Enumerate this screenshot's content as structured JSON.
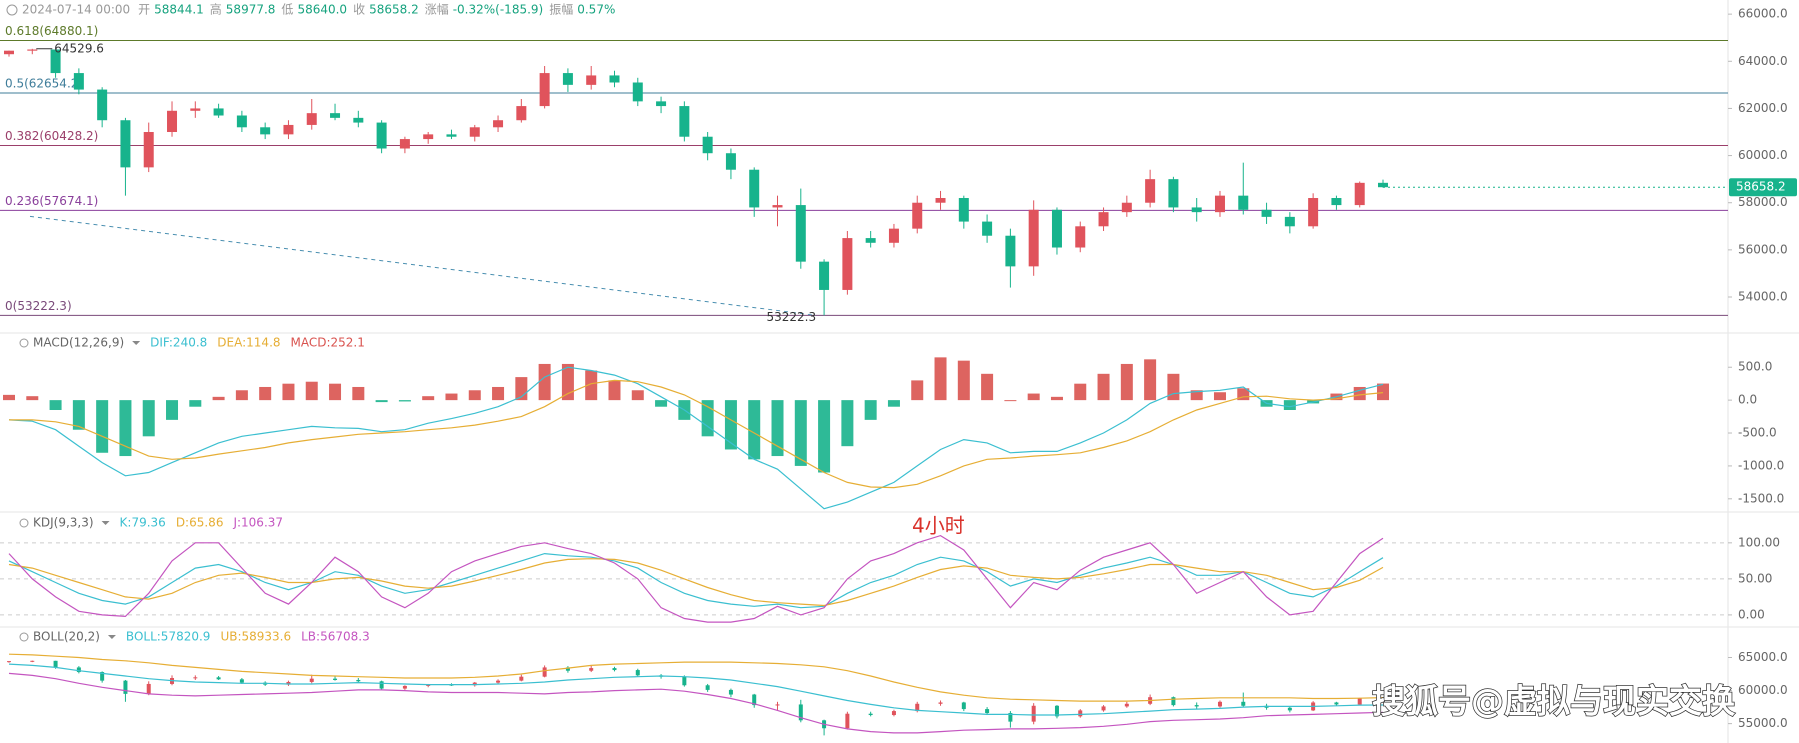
{
  "chart_data": [
    {
      "type": "candlestick",
      "header": {
        "date": "2024-07-14 00:00",
        "items": [
          {
            "label": "开",
            "value": "58844.1"
          },
          {
            "label": "高",
            "value": "58977.8"
          },
          {
            "label": "低",
            "value": "58640.0"
          },
          {
            "label": "收",
            "value": "58658.2"
          },
          {
            "label": "涨幅",
            "value": "-0.32%(-185.9)"
          },
          {
            "label": "振幅",
            "value": "0.57%"
          }
        ]
      },
      "ylim": [
        52940,
        66600
      ],
      "yticks": [
        {
          "value": 66000,
          "label": "66000.0"
        },
        {
          "value": 64000,
          "label": "64000.0"
        },
        {
          "value": 62000,
          "label": "62000.0"
        },
        {
          "value": 60000,
          "label": "60000.0"
        },
        {
          "value": 58000,
          "label": "58000.0"
        },
        {
          "value": 56000,
          "label": "56000.0"
        },
        {
          "value": 54000,
          "label": "54000.0"
        }
      ],
      "fib_levels": [
        {
          "value": 64880.1,
          "label": "0.618(64880.1)",
          "color": "#5d7a2a"
        },
        {
          "value": 62654.2,
          "label": "0.5(62654.2)",
          "color": "#3f7d9a"
        },
        {
          "value": 60428.2,
          "label": "0.382(60428.2)",
          "color": "#9b3f6a"
        },
        {
          "value": 57674.1,
          "label": "0.236(57674.1)",
          "color": "#8a3f9b"
        },
        {
          "value": 53222.3,
          "label": "0(53222.3)",
          "color": "#7a4a7a"
        }
      ],
      "annotations": [
        {
          "value": 64529.6,
          "label": "64529.6"
        },
        {
          "value": 53222.3,
          "label": "53222.3"
        }
      ],
      "last": {
        "value": 58658.2,
        "label": "58658.2"
      },
      "up_color": "#e0535c",
      "down_color": "#17b38c",
      "open": [
        64300,
        64450,
        64500,
        63500,
        62800,
        61500,
        59500,
        61000,
        61900,
        62000,
        61700,
        61200,
        60900,
        61300,
        61800,
        61600,
        61400,
        60300,
        60700,
        60900,
        60800,
        61200,
        61500,
        62100,
        63500,
        63000,
        63400,
        63100,
        62300,
        62100,
        60800,
        60100,
        59400,
        57800,
        57900,
        55500,
        54300,
        56500,
        56300,
        56900,
        58000,
        58200,
        57200,
        56600,
        55300,
        57700,
        56100,
        57000,
        57600,
        58000,
        59000,
        57800,
        57600,
        58300,
        57700,
        57400,
        57000,
        58200,
        57900,
        58844.1
      ],
      "high": [
        64450,
        64529.6,
        64500,
        63700,
        62900,
        61600,
        61400,
        62300,
        62300,
        62200,
        61900,
        61400,
        61500,
        62400,
        62200,
        61900,
        61500,
        60800,
        61000,
        61100,
        61300,
        61700,
        62400,
        63800,
        63700,
        63800,
        63600,
        63300,
        62500,
        62300,
        61000,
        60300,
        59500,
        58300,
        58600,
        55600,
        56800,
        56800,
        57100,
        58300,
        58500,
        58300,
        57500,
        56900,
        58100,
        57800,
        57200,
        57800,
        58300,
        59400,
        59100,
        58200,
        58500,
        59700,
        58000,
        57600,
        58400,
        58300,
        58900,
        58977.8
      ],
      "low": [
        64200,
        64300,
        63300,
        62600,
        61200,
        58300,
        59300,
        60800,
        61600,
        61600,
        61000,
        60700,
        60700,
        61100,
        61500,
        61200,
        60100,
        60100,
        60500,
        60700,
        60600,
        61000,
        61400,
        62000,
        62700,
        62800,
        62900,
        62100,
        61800,
        60600,
        59800,
        59000,
        57400,
        57000,
        55200,
        53222.3,
        54100,
        56100,
        56100,
        56700,
        57700,
        56900,
        56300,
        54400,
        54900,
        55800,
        55900,
        56800,
        57400,
        57800,
        57600,
        57200,
        57400,
        57500,
        57100,
        56700,
        56900,
        57700,
        57800,
        58640
      ],
      "close": [
        64450,
        64500,
        63500,
        62800,
        61500,
        59500,
        61000,
        61900,
        62000,
        61700,
        61200,
        60900,
        61300,
        61800,
        61600,
        61400,
        60300,
        60700,
        60900,
        60800,
        61200,
        61500,
        62100,
        63500,
        63000,
        63400,
        63100,
        62300,
        62100,
        60800,
        60100,
        59400,
        57800,
        57900,
        55500,
        54300,
        56500,
        56300,
        56900,
        58000,
        58200,
        57200,
        56600,
        55300,
        57700,
        56100,
        57000,
        57600,
        58000,
        59000,
        57800,
        57600,
        58300,
        57700,
        57400,
        57000,
        58200,
        57900,
        58844.1,
        58658.2
      ]
    },
    {
      "type": "macd",
      "title": "MACD(12,26,9)",
      "ylim": [
        -1670,
        990
      ],
      "yticks": [
        {
          "value": 500,
          "label": "500.0"
        },
        {
          "value": 0,
          "label": "0.0"
        },
        {
          "value": -500,
          "label": "-500.0"
        },
        {
          "value": -1000,
          "label": "-1000.0"
        },
        {
          "value": -1500,
          "label": "-1500.0"
        }
      ],
      "series": [
        {
          "name": "DIF:240.8",
          "color": "#3bbfd0",
          "values": [
            -300,
            -320,
            -450,
            -700,
            -950,
            -1150,
            -1100,
            -950,
            -800,
            -650,
            -550,
            -500,
            -450,
            -400,
            -420,
            -430,
            -480,
            -450,
            -350,
            -280,
            -200,
            -100,
            50,
            350,
            500,
            450,
            380,
            250,
            50,
            -150,
            -400,
            -650,
            -900,
            -1050,
            -1350,
            -1650,
            -1550,
            -1400,
            -1250,
            -1000,
            -750,
            -600,
            -650,
            -800,
            -780,
            -780,
            -650,
            -500,
            -300,
            -50,
            100,
            130,
            150,
            200,
            -50,
            -100,
            -30,
            50,
            150,
            240.8
          ]
        },
        {
          "name": "DEA:114.8",
          "color": "#e6ae35",
          "values": [
            -300,
            -300,
            -330,
            -400,
            -550,
            -700,
            -850,
            -900,
            -880,
            -820,
            -770,
            -720,
            -650,
            -600,
            -560,
            -520,
            -500,
            -480,
            -450,
            -420,
            -380,
            -320,
            -250,
            -100,
            100,
            250,
            300,
            280,
            200,
            80,
            -100,
            -300,
            -500,
            -700,
            -900,
            -1100,
            -1250,
            -1320,
            -1330,
            -1280,
            -1150,
            -1000,
            -900,
            -880,
            -850,
            -830,
            -800,
            -720,
            -620,
            -480,
            -300,
            -150,
            -50,
            50,
            60,
            20,
            0,
            20,
            80,
            114.8
          ]
        },
        {
          "name": "MACD:252.1",
          "color": "#d9534f",
          "down_color": "#17b38c",
          "values": [
            80,
            60,
            -150,
            -450,
            -800,
            -850,
            -550,
            -300,
            -100,
            50,
            150,
            200,
            250,
            280,
            250,
            200,
            -30,
            -20,
            60,
            100,
            150,
            200,
            350,
            550,
            550,
            450,
            300,
            150,
            -100,
            -300,
            -550,
            -750,
            -900,
            -850,
            -1000,
            -1100,
            -700,
            -300,
            -100,
            300,
            650,
            600,
            400,
            0,
            100,
            50,
            250,
            400,
            550,
            620,
            400,
            150,
            120,
            180,
            -100,
            -150,
            -50,
            100,
            200,
            252.1
          ]
        }
      ]
    },
    {
      "type": "line",
      "title": "KDJ(9,3,3)",
      "ylim": [
        -14,
        140
      ],
      "yticks": [
        {
          "value": 100,
          "label": "100.00"
        },
        {
          "value": 50,
          "label": "50.00"
        },
        {
          "value": 0,
          "label": "0.00"
        }
      ],
      "annotation": "4小时",
      "series": [
        {
          "name": "K:79.36",
          "color": "#3bbfd0",
          "values": [
            75,
            60,
            45,
            30,
            20,
            15,
            25,
            45,
            65,
            70,
            60,
            45,
            35,
            45,
            60,
            55,
            40,
            30,
            35,
            45,
            55,
            65,
            75,
            85,
            82,
            80,
            75,
            65,
            45,
            30,
            20,
            15,
            12,
            15,
            10,
            12,
            30,
            45,
            55,
            70,
            80,
            75,
            60,
            40,
            50,
            45,
            55,
            65,
            72,
            80,
            70,
            55,
            55,
            60,
            45,
            30,
            25,
            40,
            60,
            79.36
          ]
        },
        {
          "name": "D:65.86",
          "color": "#e6ae35",
          "values": [
            70,
            65,
            55,
            45,
            35,
            25,
            22,
            30,
            45,
            55,
            58,
            52,
            45,
            45,
            50,
            52,
            47,
            40,
            37,
            40,
            47,
            55,
            63,
            72,
            77,
            78,
            77,
            72,
            62,
            50,
            38,
            28,
            20,
            17,
            15,
            13,
            20,
            30,
            40,
            52,
            63,
            68,
            65,
            55,
            52,
            50,
            52,
            57,
            63,
            70,
            70,
            65,
            60,
            60,
            55,
            45,
            35,
            38,
            48,
            65.86
          ]
        },
        {
          "name": "J:106.37",
          "color": "#c455c0",
          "values": [
            85,
            50,
            25,
            5,
            0,
            -2,
            30,
            75,
            100,
            100,
            65,
            30,
            15,
            45,
            80,
            60,
            25,
            10,
            30,
            60,
            75,
            85,
            95,
            100,
            92,
            85,
            72,
            50,
            10,
            -5,
            -10,
            -10,
            -5,
            12,
            0,
            10,
            50,
            75,
            85,
            100,
            110,
            90,
            50,
            10,
            45,
            35,
            62,
            80,
            90,
            100,
            70,
            30,
            45,
            60,
            25,
            0,
            5,
            45,
            85,
            106.37
          ]
        }
      ]
    },
    {
      "type": "boll",
      "title": "BOLL(20,2)",
      "ylim": [
        52070,
        69310
      ],
      "yticks": [
        {
          "value": 65000,
          "label": "65000.0"
        },
        {
          "value": 60000,
          "label": "60000.0"
        },
        {
          "value": 55000,
          "label": "55000.0"
        }
      ],
      "series": [
        {
          "name": "BOLL:57820.9",
          "color": "#3bbfd0",
          "values": [
            64000,
            63800,
            63500,
            63000,
            62600,
            62200,
            61800,
            61500,
            61300,
            61200,
            61100,
            61100,
            61000,
            61000,
            61100,
            61200,
            61100,
            61000,
            60900,
            60900,
            60900,
            61000,
            61100,
            61300,
            61600,
            61800,
            62000,
            62100,
            62200,
            62100,
            61900,
            61600,
            61100,
            60600,
            59900,
            59200,
            58500,
            57900,
            57400,
            57000,
            56800,
            56600,
            56400,
            56400,
            56300,
            56300,
            56400,
            56500,
            56700,
            56900,
            57100,
            57200,
            57300,
            57500,
            57600,
            57600,
            57600,
            57700,
            57800,
            57820.9
          ]
        },
        {
          "name": "UB:58933.6",
          "color": "#e6ae35",
          "values": [
            65500,
            65400,
            65200,
            65000,
            64700,
            64500,
            64200,
            63800,
            63500,
            63200,
            62900,
            62700,
            62500,
            62300,
            62200,
            62100,
            62000,
            61900,
            61900,
            61900,
            62000,
            62200,
            62500,
            63000,
            63400,
            63800,
            64000,
            64100,
            64200,
            64300,
            64300,
            64300,
            64200,
            64100,
            63900,
            63600,
            63000,
            62200,
            61300,
            60500,
            59800,
            59300,
            58900,
            58700,
            58600,
            58500,
            58400,
            58400,
            58400,
            58500,
            58700,
            58800,
            58900,
            58900,
            58900,
            58900,
            58800,
            58800,
            58850,
            58933.6
          ]
        },
        {
          "name": "LB:56708.3",
          "color": "#c455c0",
          "values": [
            62600,
            62300,
            61800,
            61100,
            60500,
            60000,
            59500,
            59300,
            59200,
            59300,
            59400,
            59500,
            59600,
            59700,
            59900,
            60100,
            60100,
            60000,
            59800,
            59700,
            59700,
            59700,
            59600,
            59500,
            59700,
            59800,
            60000,
            60100,
            60200,
            59900,
            59400,
            58800,
            58000,
            57000,
            55900,
            54900,
            54200,
            53800,
            53600,
            53600,
            53800,
            54000,
            54100,
            54200,
            54200,
            54300,
            54400,
            54600,
            54900,
            55300,
            55500,
            55600,
            55700,
            55900,
            56200,
            56300,
            56400,
            56500,
            56600,
            56708.3
          ]
        }
      ]
    }
  ],
  "watermark": "搜狐号@虚拟与现实交换"
}
